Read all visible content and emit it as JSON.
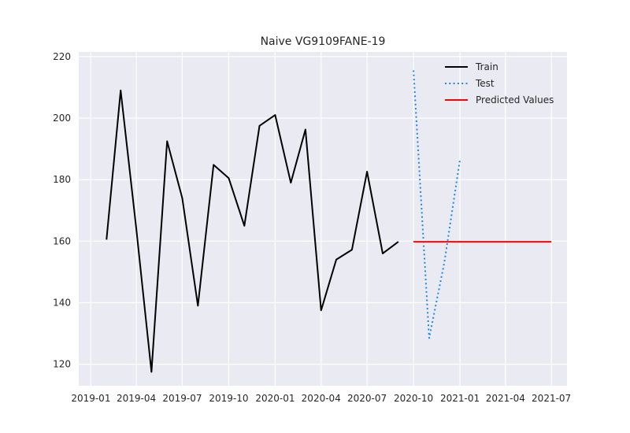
{
  "chart_data": {
    "type": "line",
    "title": "Naive VG9109FANE-19",
    "xlabel": "",
    "ylabel": "",
    "x_axis_type": "date",
    "xlim": [
      "2018-12-08",
      "2021-08-01"
    ],
    "ylim": [
      113,
      221.5
    ],
    "grid": true,
    "legend_position": "upper center-right",
    "x_ticks": [
      "2019-01",
      "2019-04",
      "2019-07",
      "2019-10",
      "2020-01",
      "2020-04",
      "2020-07",
      "2020-10",
      "2021-01",
      "2021-04",
      "2021-07"
    ],
    "y_ticks": [
      120,
      140,
      160,
      180,
      200,
      220
    ],
    "series": [
      {
        "name": "Train",
        "color": "#000000",
        "line_style": "solid",
        "x": [
          "2019-02-01",
          "2019-03-01",
          "2019-04-01",
          "2019-05-01",
          "2019-06-01",
          "2019-07-01",
          "2019-08-01",
          "2019-09-01",
          "2019-10-01",
          "2019-11-01",
          "2019-12-01",
          "2020-01-01",
          "2020-02-01",
          "2020-03-01",
          "2020-04-01",
          "2020-05-01",
          "2020-06-01",
          "2020-07-01",
          "2020-08-01",
          "2020-09-01"
        ],
        "y": [
          160.5,
          209.0,
          164.0,
          117.5,
          192.5,
          174.0,
          139.0,
          184.8,
          180.5,
          165.0,
          197.5,
          201.0,
          179.0,
          196.3,
          137.5,
          154.0,
          157.2,
          182.6,
          156.0,
          159.8
        ]
      },
      {
        "name": "Test",
        "color": "#1e88e5",
        "line_style": "dotted",
        "x": [
          "2020-10-01",
          "2020-11-01",
          "2020-12-01",
          "2021-01-01"
        ],
        "y": [
          215.5,
          128.5,
          153.0,
          186.5
        ]
      },
      {
        "name": "Predicted Values",
        "color": "#ff0000",
        "line_style": "solid",
        "x": [
          "2020-10-01",
          "2021-07-01"
        ],
        "y": [
          159.8,
          159.8
        ]
      }
    ]
  }
}
